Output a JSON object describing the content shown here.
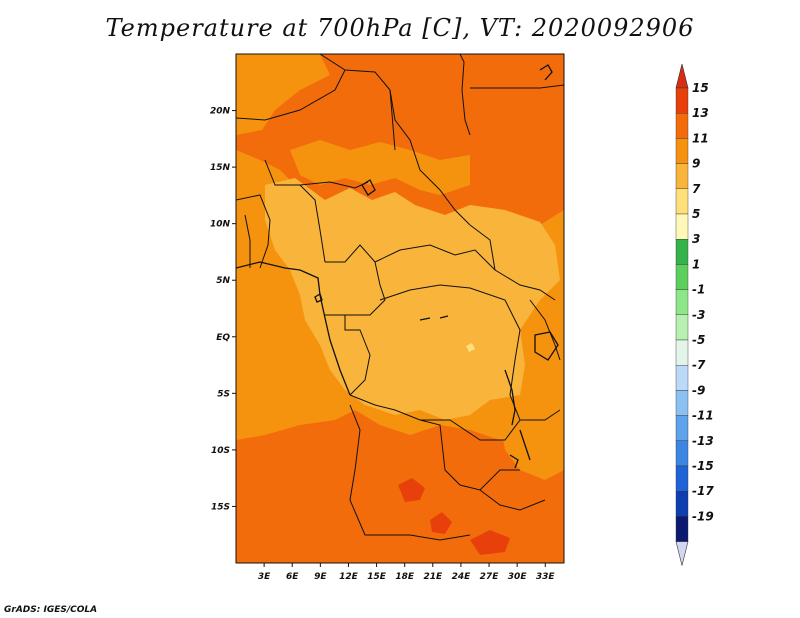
{
  "title": "Temperature at 700hPa [C], VT: 2020092906",
  "credit": "GrADS: IGES/COLA",
  "map": {
    "variable": "temperature",
    "level": "700hPa",
    "units": "C",
    "valid_time": "2020092906",
    "lon_range": [
      0,
      35
    ],
    "lat_range": [
      -20,
      25
    ],
    "lat_ticks": [
      "20N",
      "15N",
      "10N",
      "5N",
      "EQ",
      "5S",
      "10S",
      "15S"
    ],
    "lon_ticks": [
      "3E",
      "6E",
      "9E",
      "12E",
      "15E",
      "18E",
      "21E",
      "24E",
      "27E",
      "30E",
      "33E"
    ],
    "region_colors": {
      "warm_11_13": "#f36c0c",
      "mid_9_11": "#f5930f",
      "cool_7_9": "#f8b43b",
      "hot_13_15": "#e8400b",
      "pale_5_7": "#fde07a"
    }
  },
  "colorbar": {
    "labels": [
      "15",
      "13",
      "11",
      "9",
      "7",
      "5",
      "3",
      "1",
      "-1",
      "-3",
      "-5",
      "-7",
      "-9",
      "-11",
      "-13",
      "-15",
      "-17",
      "-19"
    ],
    "top_arrow_color": "#d82d12",
    "bottom_arrow_color": "#d2d6f0",
    "colors": [
      "#e8400b",
      "#f36c0c",
      "#f5930f",
      "#f8b43b",
      "#fde07a",
      "#fff8b8",
      "#35b34a",
      "#5ccf5c",
      "#8ee68a",
      "#b7f0b0",
      "#e2f5e8",
      "#bcdaf7",
      "#8cc0f2",
      "#5ea3ec",
      "#3b86e3",
      "#1f63d6",
      "#0d3fb0",
      "#0a1a70"
    ]
  }
}
